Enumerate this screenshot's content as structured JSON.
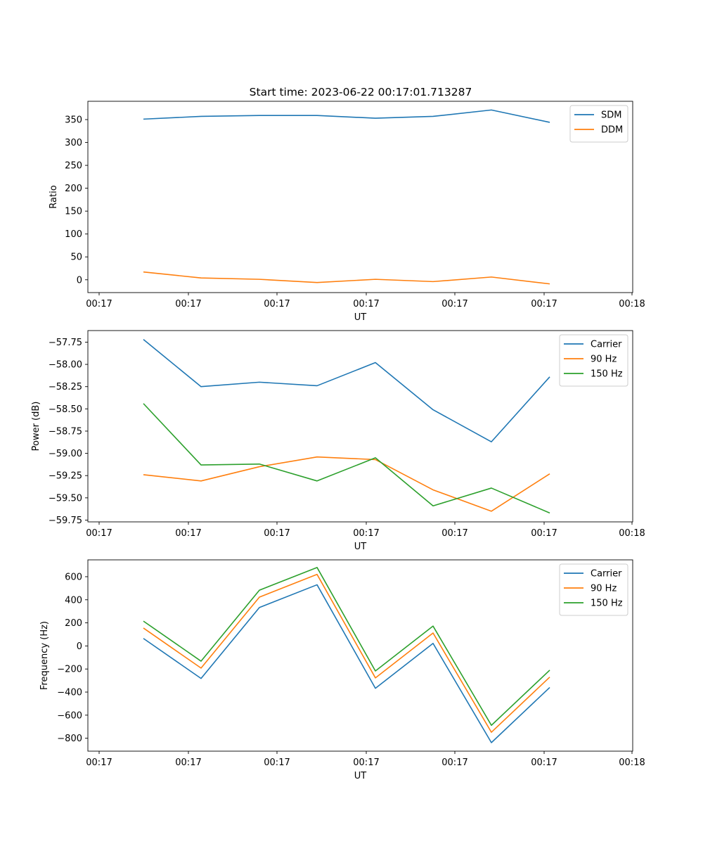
{
  "figure": {
    "title": "Start time: 2023-06-22 00:17:01.713287"
  },
  "chart_data": [
    {
      "type": "line",
      "xlabel": "UT",
      "ylabel": "Ratio",
      "x_tick_labels": [
        "00:17",
        "00:17",
        "00:17",
        "00:17",
        "00:17",
        "00:17",
        "00:18"
      ],
      "y_ticks": [
        0,
        50,
        100,
        150,
        200,
        250,
        300,
        350
      ],
      "y_tick_labels": [
        "0",
        "50",
        "100",
        "150",
        "200",
        "250",
        "300",
        "350"
      ],
      "ylim": [
        -28,
        390
      ],
      "legend": "top-right",
      "series": [
        {
          "name": "SDM",
          "color": "#1f77b4",
          "values": [
            351,
            357,
            359,
            359,
            353,
            357,
            371,
            344
          ]
        },
        {
          "name": "DDM",
          "color": "#ff7f0e",
          "values": [
            17,
            4,
            1,
            -6,
            1,
            -4,
            6,
            -9
          ]
        }
      ]
    },
    {
      "type": "line",
      "xlabel": "UT",
      "ylabel": "Power (dB)",
      "x_tick_labels": [
        "00:17",
        "00:17",
        "00:17",
        "00:17",
        "00:17",
        "00:17",
        "00:18"
      ],
      "y_ticks": [
        -57.75,
        -58.0,
        -58.25,
        -58.5,
        -58.75,
        -59.0,
        -59.25,
        -59.5,
        -59.75
      ],
      "y_tick_labels": [
        "−57.75",
        "−58.00",
        "−58.25",
        "−58.50",
        "−58.75",
        "−59.00",
        "−59.25",
        "−59.50",
        "−59.75"
      ],
      "ylim": [
        -59.77,
        -57.62
      ],
      "legend": "top-right",
      "series": [
        {
          "name": "Carrier",
          "color": "#1f77b4",
          "values": [
            -57.72,
            -58.25,
            -58.2,
            -58.24,
            -57.98,
            -58.51,
            -58.87,
            -58.14
          ]
        },
        {
          "name": "90 Hz",
          "color": "#ff7f0e",
          "values": [
            -59.24,
            -59.31,
            -59.15,
            -59.04,
            -59.07,
            -59.41,
            -59.65,
            -59.23
          ]
        },
        {
          "name": "150 Hz",
          "color": "#2ca02c",
          "values": [
            -58.44,
            -59.13,
            -59.12,
            -59.31,
            -59.05,
            -59.59,
            -59.39,
            -59.67
          ]
        }
      ]
    },
    {
      "type": "line",
      "xlabel": "UT",
      "ylabel": "Frequency (Hz)",
      "x_tick_labels": [
        "00:17",
        "00:17",
        "00:17",
        "00:17",
        "00:17",
        "00:17",
        "00:18"
      ],
      "y_ticks": [
        -800,
        -600,
        -400,
        -200,
        0,
        200,
        400,
        600
      ],
      "y_tick_labels": [
        "−800",
        "−600",
        "−400",
        "−200",
        "0",
        "200",
        "400",
        "600"
      ],
      "ylim": [
        -912,
        746
      ],
      "legend": "top-right",
      "series": [
        {
          "name": "Carrier",
          "color": "#1f77b4",
          "values": [
            65,
            -282,
            333,
            530,
            -367,
            22,
            -838,
            -360
          ]
        },
        {
          "name": "90 Hz",
          "color": "#ff7f0e",
          "values": [
            155,
            -192,
            423,
            620,
            -277,
            112,
            -748,
            -270
          ]
        },
        {
          "name": "150 Hz",
          "color": "#2ca02c",
          "values": [
            215,
            -132,
            483,
            680,
            -217,
            172,
            -688,
            -210
          ]
        }
      ]
    }
  ]
}
